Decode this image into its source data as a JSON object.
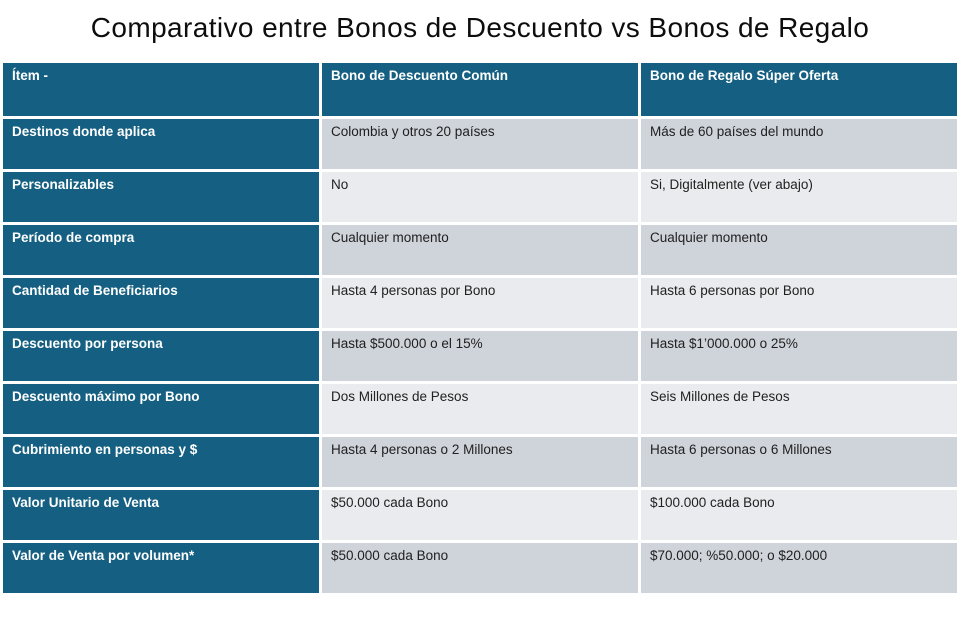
{
  "title": "Comparativo entre Bonos de Descuento vs Bonos de Regalo",
  "colors": {
    "accent_teal": "#156082",
    "band_dark": "#cfd3da",
    "band_light": "#e9ebee",
    "header_text": "#ffffff",
    "body_text": "#212121"
  },
  "table": {
    "headers": [
      "Ítem -",
      "Bono de Descuento Común",
      "Bono de Regalo Súper Oferta"
    ],
    "rows": [
      {
        "item": "Destinos donde aplica",
        "descuento": "Colombia y otros 20 países",
        "regalo": "Más de 60 países del mundo"
      },
      {
        "item": "Personalizables",
        "descuento": "No",
        "regalo": "Si, Digitalmente (ver abajo)"
      },
      {
        "item": "Período de compra",
        "descuento": "Cualquier momento",
        "regalo": "Cualquier momento"
      },
      {
        "item": "Cantidad de Beneficiarios",
        "descuento": "Hasta 4 personas por Bono",
        "regalo": "Hasta 6 personas por Bono"
      },
      {
        "item": "Descuento por persona",
        "descuento": "Hasta $500.000 o el 15%",
        "regalo": "Hasta $1’000.000 o 25%"
      },
      {
        "item": "Descuento máximo por Bono",
        "descuento": "Dos Millones de Pesos",
        "regalo": "Seis Millones de Pesos"
      },
      {
        "item": "Cubrimiento en personas y $",
        "descuento": "Hasta 4 personas o 2 Millones",
        "regalo": "Hasta 6 personas o 6 Millones"
      },
      {
        "item": "Valor Unitario de Venta",
        "descuento": "$50.000 cada Bono",
        "regalo": "$100.000 cada Bono"
      },
      {
        "item": "Valor de Venta por volumen*",
        "descuento": "$50.000 cada Bono",
        "regalo": "$70.000; %50.000; o $20.000"
      }
    ]
  }
}
